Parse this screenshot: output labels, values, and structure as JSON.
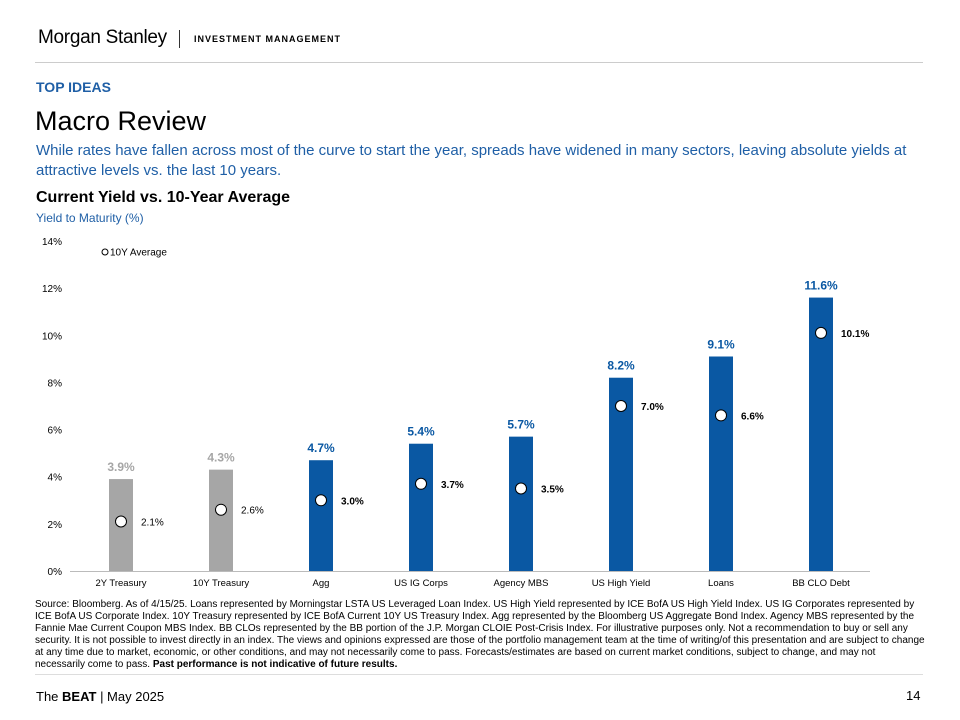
{
  "header": {
    "logo": "Morgan Stanley",
    "division": "INVESTMENT MANAGEMENT"
  },
  "kicker": "TOP IDEAS",
  "title": "Macro Review",
  "subtitle": "While rates have fallen across most of the curve to start the year, spreads have widened in many sectors, leaving absolute yields at attractive levels vs. the last 10 years.",
  "chart_data": {
    "type": "bar",
    "title": "Current Yield vs. 10-Year Average",
    "ylabel": "Yield to Maturity (%)",
    "xlabel": "",
    "ylim": [
      0,
      14
    ],
    "yticks": [
      "0%",
      "2%",
      "4%",
      "6%",
      "8%",
      "10%",
      "12%",
      "14%"
    ],
    "categories": [
      "2Y Treasury",
      "10Y Treasury",
      "Agg",
      "US IG Corps",
      "Agency MBS",
      "US High Yield",
      "Loans",
      "BB CLO Debt"
    ],
    "series": [
      {
        "name": "Current Yield",
        "values": [
          3.9,
          4.3,
          4.7,
          5.4,
          5.7,
          8.2,
          9.1,
          11.6
        ],
        "labels": [
          "3.9%",
          "4.3%",
          "4.7%",
          "5.4%",
          "5.7%",
          "8.2%",
          "9.1%",
          "11.6%"
        ],
        "colors": [
          "#a6a6a6",
          "#a6a6a6",
          "#0a58a3",
          "#0a58a3",
          "#0a58a3",
          "#0a58a3",
          "#0a58a3",
          "#0a58a3"
        ]
      },
      {
        "name": "10Y Average",
        "values": [
          2.1,
          2.6,
          3.0,
          3.7,
          3.5,
          7.0,
          6.6,
          10.1
        ],
        "labels": [
          "2.1%",
          "2.6%",
          "3.0%",
          "3.7%",
          "3.5%",
          "7.0%",
          "6.6%",
          "10.1%"
        ]
      }
    ],
    "legend": {
      "label": "10Y Average",
      "position": "top-left"
    },
    "grid": false
  },
  "source": "Source: Bloomberg. As of 4/15/25. Loans represented by Morningstar LSTA US Leveraged Loan Index. US High Yield represented by ICE BofA US High Yield Index. US IG Corporates represented by ICE BofA US Corporate Index. 10Y Treasury represented by ICE BofA Current 10Y US Treasury Index. Agg represented by the Bloomberg US Aggregate Bond Index. Agency MBS represented by the Fannie Mae Current Coupon MBS Index. BB CLOs represented by the BB portion of the J.P. Morgan CLOIE Post-Crisis Index. For illustrative purposes only. Not a recommendation to buy or sell any security. It is not possible to invest directly in an index. The views and opinions expressed are those of the portfolio management team at the time of writing/of this presentation and are subject to change at any time due to market, economic, or other conditions, and may not necessarily come to pass.  Forecasts/estimates are based on current market conditions, subject to change, and may not necessarily come to pass.",
  "source_bold": "Past performance is not indicative of future results.",
  "footer": {
    "prefix": "The ",
    "brand": "BEAT",
    "suffix": " | May 2025",
    "page": "14"
  }
}
